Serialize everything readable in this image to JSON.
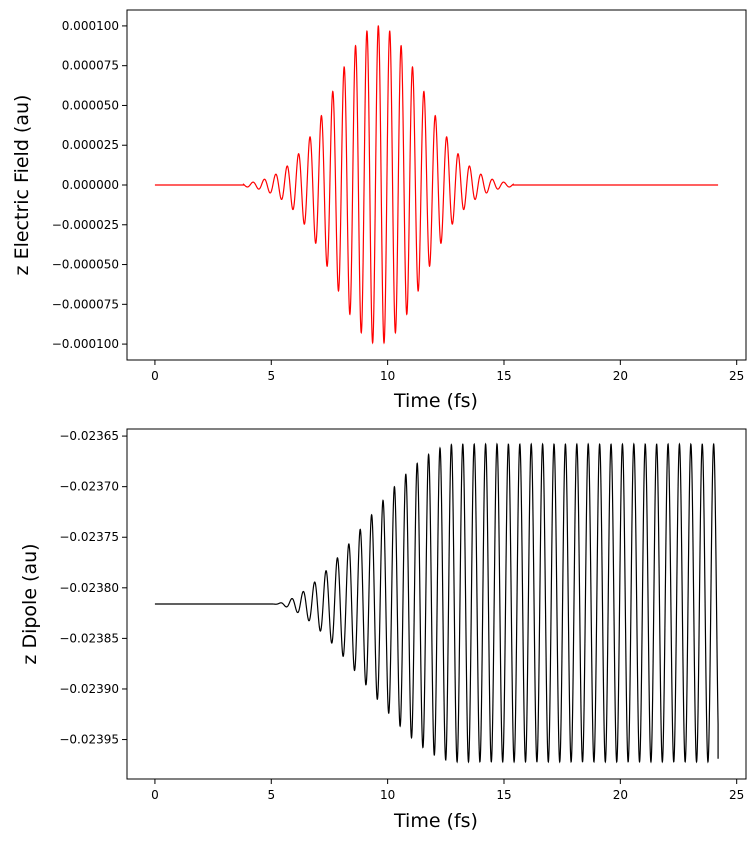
{
  "chart_data": [
    {
      "type": "line",
      "title": "",
      "xlabel": "Time (fs)",
      "ylabel": "z Electric Field (au)",
      "xlim": [
        -1.2,
        25.4
      ],
      "ylim": [
        -0.00011,
        0.00011
      ],
      "xticks": [
        0,
        5,
        10,
        15,
        20,
        25
      ],
      "xtick_labels": [
        "0",
        "5",
        "10",
        "15",
        "20",
        "25"
      ],
      "yticks": [
        -0.0001,
        -7.5e-05,
        -5e-05,
        -2.5e-05,
        0,
        2.5e-05,
        5e-05,
        7.5e-05,
        0.0001
      ],
      "ytick_labels": [
        "−0.000100",
        "−0.000075",
        "−0.000050",
        "−0.000025",
        "0.000000",
        "0.000025",
        "0.000050",
        "0.000075",
        "0.000100"
      ],
      "grid": false,
      "color": "#ff0000",
      "series": [
        {
          "x_range": [
            0,
            24.2
          ],
          "model": "gaussian_pulse",
          "amplitude": 0.0001,
          "center_fs": 9.6,
          "sigma_fs": 1.9,
          "period_fs": 0.49,
          "pulse_support_fs": [
            3.8,
            15.4
          ]
        }
      ]
    },
    {
      "type": "line",
      "title": "",
      "xlabel": "Time (fs)",
      "ylabel": "z Dipole (au)",
      "xlim": [
        -1.2,
        25.4
      ],
      "ylim": [
        -0.023989,
        -0.023643
      ],
      "xticks": [
        0,
        5,
        10,
        15,
        20,
        25
      ],
      "xtick_labels": [
        "0",
        "5",
        "10",
        "15",
        "20",
        "25"
      ],
      "yticks": [
        -0.02395,
        -0.0239,
        -0.02385,
        -0.0238,
        -0.02375,
        -0.0237,
        -0.02365
      ],
      "ytick_labels": [
        "−0.02395",
        "−0.02390",
        "−0.02385",
        "−0.02380",
        "−0.02375",
        "−0.02370",
        "−0.02365"
      ],
      "grid": false,
      "color": "#000000",
      "series": [
        {
          "x_range": [
            0,
            24.2
          ],
          "model": "driven_oscillation",
          "baseline": -0.023816,
          "upper_envelope_max": -0.023658,
          "lower_envelope_min": -0.023972,
          "saturation_time_fs": 13.0,
          "period_fs": 0.49,
          "end_value": -0.023969
        }
      ]
    }
  ]
}
